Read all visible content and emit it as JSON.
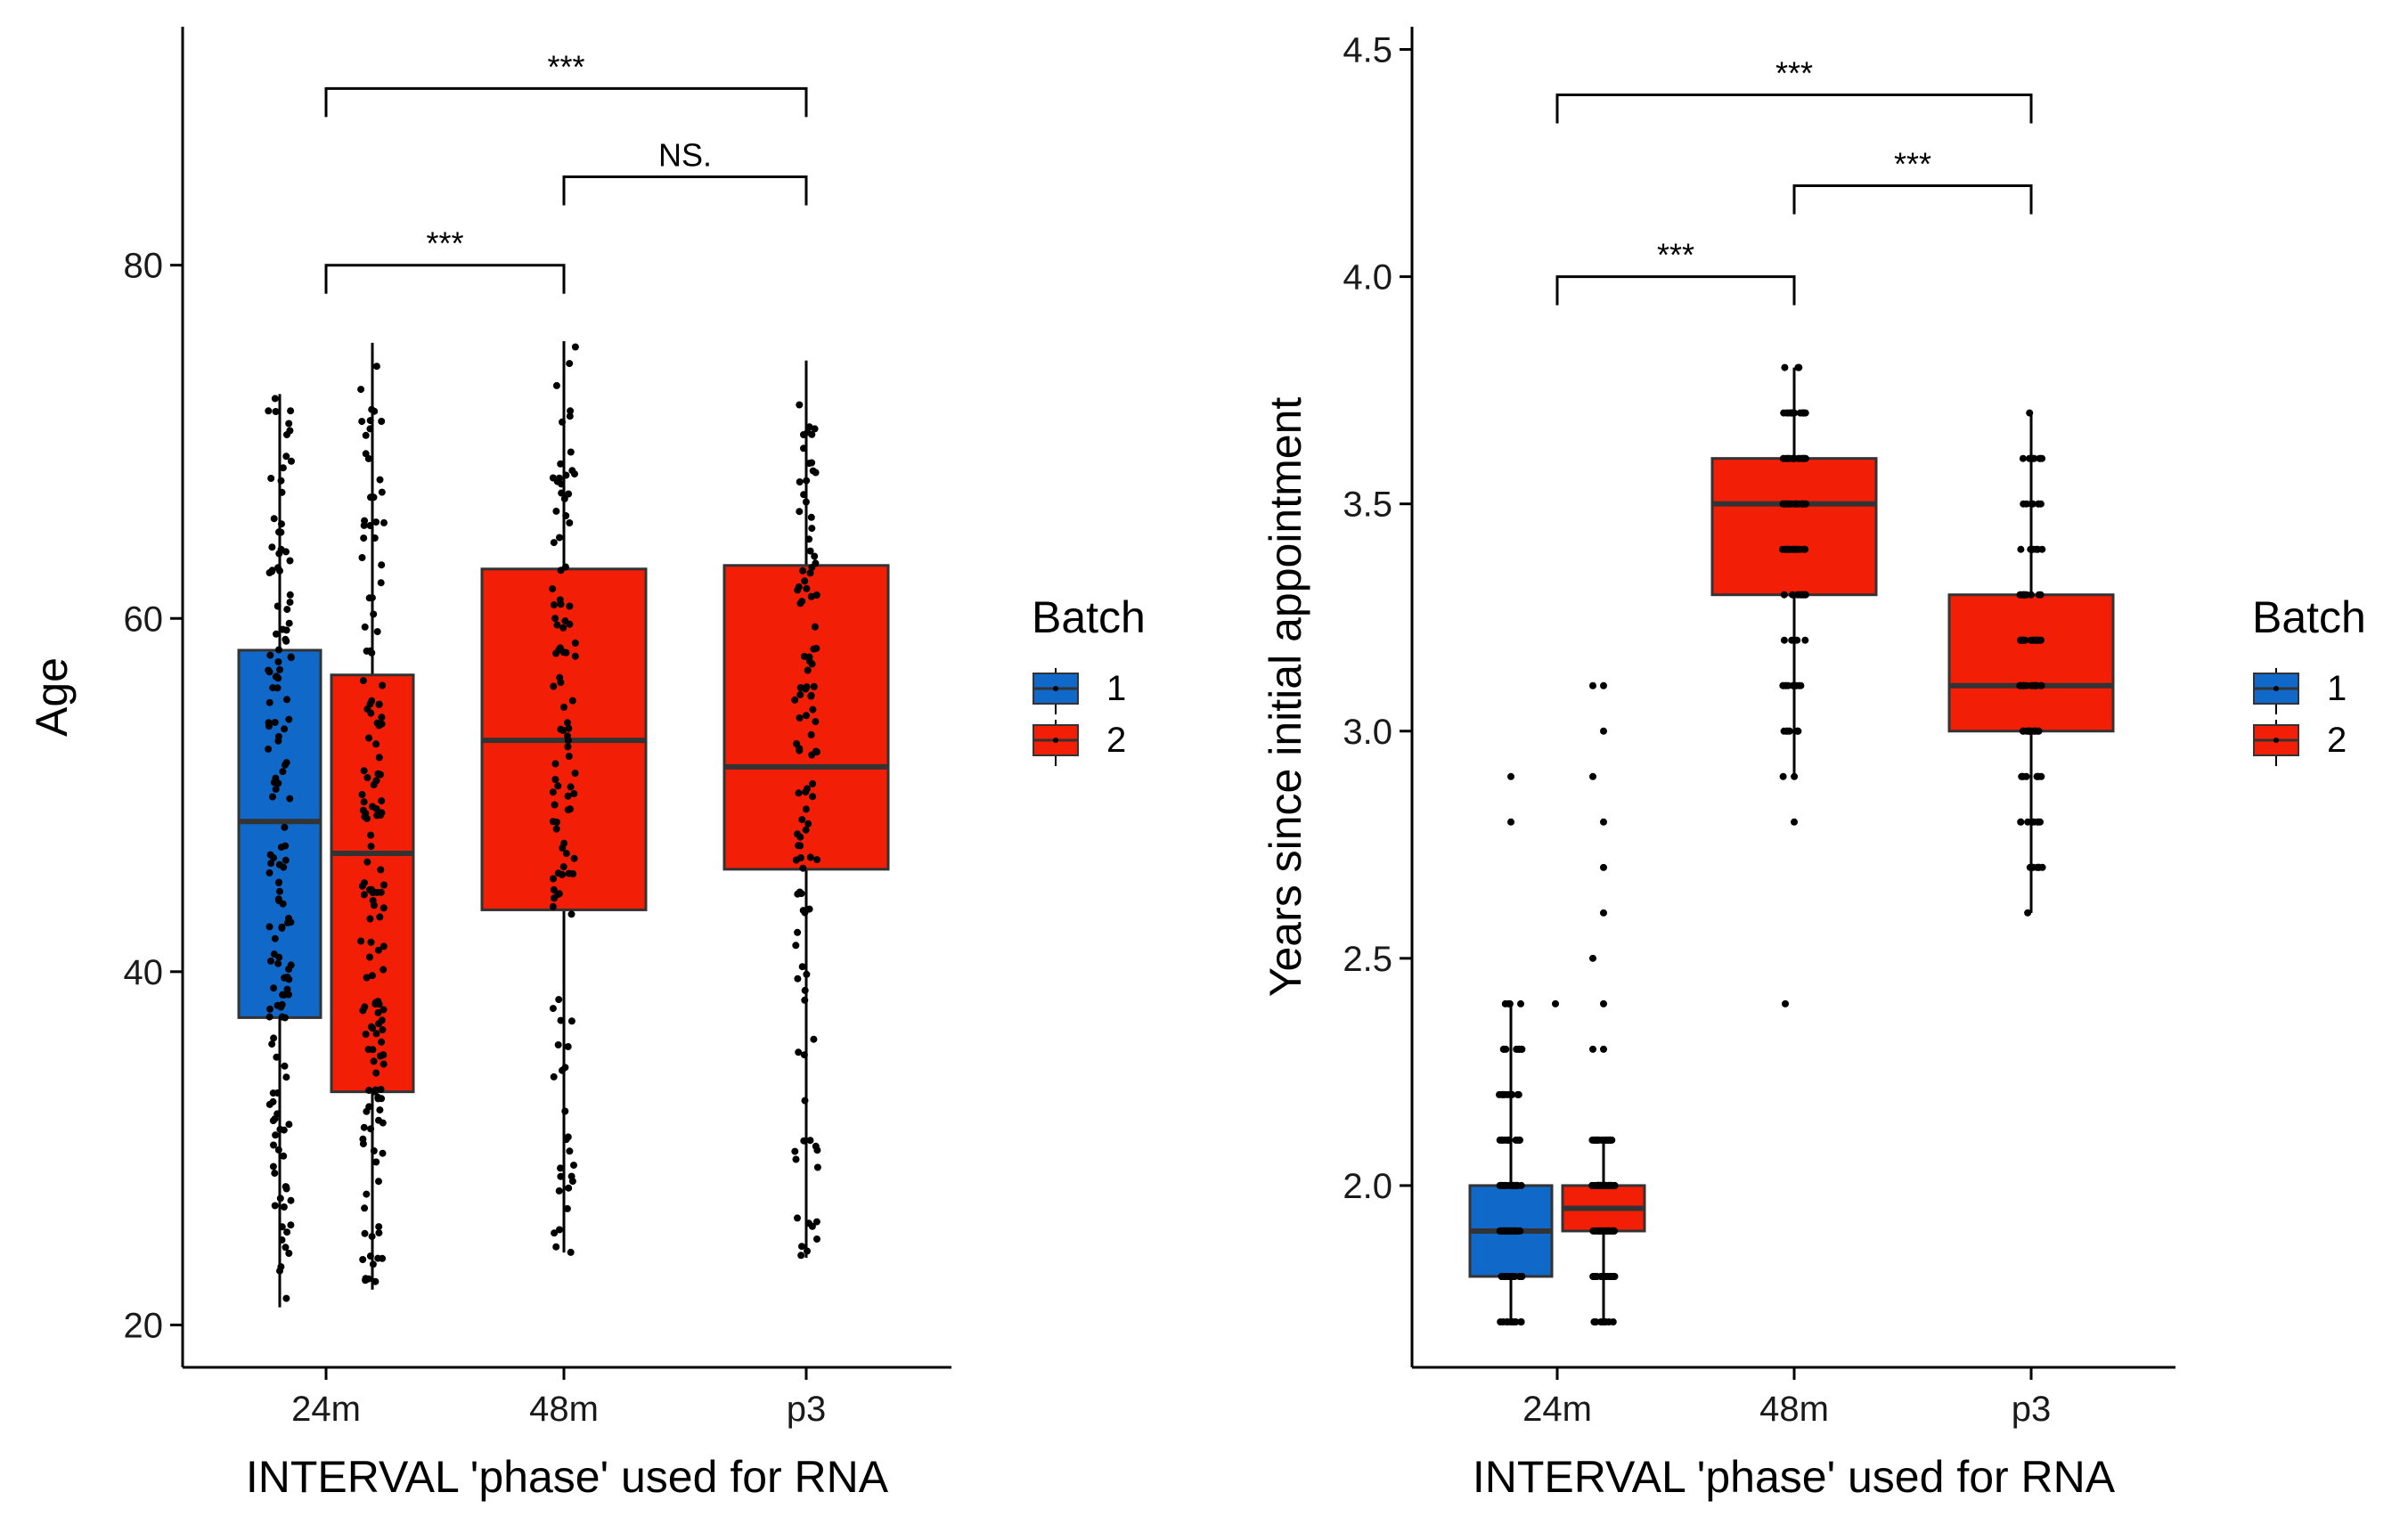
{
  "chart_data": [
    {
      "type": "boxplot",
      "ylabel": "Age",
      "xlabel": "INTERVAL 'phase' used for RNA",
      "categories": [
        "24m",
        "48m",
        "p3"
      ],
      "y_ticks": [
        20,
        40,
        60,
        80
      ],
      "ylim": [
        17.6,
        93.5
      ],
      "legend": {
        "title": "Batch",
        "entries": [
          {
            "label": "1",
            "color": "#1068C9"
          },
          {
            "label": "2",
            "color": "#F21E06"
          }
        ]
      },
      "boxes": [
        {
          "category": "24m",
          "batch": "1",
          "min": 21,
          "q1": 37.4,
          "median": 48.5,
          "q3": 58.2,
          "max": 72.7,
          "color": "#1068C9"
        },
        {
          "category": "24m",
          "batch": "2",
          "min": 22,
          "q1": 33.2,
          "median": 46.7,
          "q3": 56.8,
          "max": 75.6,
          "color": "#F21E06"
        },
        {
          "category": "48m",
          "batch": "2",
          "min": 24.1,
          "q1": 43.5,
          "median": 53.1,
          "q3": 62.8,
          "max": 75.7,
          "color": "#F21E06"
        },
        {
          "category": "p3",
          "batch": "2",
          "min": 23.8,
          "q1": 45.8,
          "median": 51.6,
          "q3": 63.0,
          "max": 74.6,
          "color": "#F21E06"
        }
      ],
      "comparisons": [
        {
          "from": "24m",
          "to": "48m",
          "label": "***",
          "y": 80
        },
        {
          "from": "48m",
          "to": "p3",
          "label": "NS.",
          "y": 85
        },
        {
          "from": "24m",
          "to": "p3",
          "label": "***",
          "y": 90
        }
      ]
    },
    {
      "type": "boxplot",
      "ylabel": "Years since initial appointment",
      "xlabel": "INTERVAL 'phase' used for RNA",
      "categories": [
        "24m",
        "48m",
        "p3"
      ],
      "y_ticks": [
        2.0,
        2.5,
        3.0,
        3.5,
        4.0,
        4.5
      ],
      "y_tick_labels": [
        "2.0",
        "2.5",
        "3.0",
        "3.5",
        "4.0",
        "4.5"
      ],
      "ylim": [
        1.6,
        4.55
      ],
      "legend": {
        "title": "Batch",
        "entries": [
          {
            "label": "1",
            "color": "#1068C9"
          },
          {
            "label": "2",
            "color": "#F21E06"
          }
        ]
      },
      "boxes": [
        {
          "category": "24m",
          "batch": "1",
          "min": 1.7,
          "q1": 1.8,
          "median": 1.9,
          "q3": 2.0,
          "max": 2.4,
          "color": "#1068C9"
        },
        {
          "category": "24m",
          "batch": "2",
          "min": 1.7,
          "q1": 1.9,
          "median": 1.95,
          "q3": 2.0,
          "max": 2.1,
          "color": "#F21E06"
        },
        {
          "category": "48m",
          "batch": "2",
          "min": 2.9,
          "q1": 3.3,
          "median": 3.5,
          "q3": 3.6,
          "max": 3.8,
          "color": "#F21E06"
        },
        {
          "category": "p3",
          "batch": "2",
          "min": 2.6,
          "q1": 3.0,
          "median": 3.1,
          "q3": 3.3,
          "max": 3.7,
          "color": "#F21E06"
        }
      ],
      "comparisons": [
        {
          "from": "24m",
          "to": "48m",
          "label": "***",
          "y": 4.0
        },
        {
          "from": "48m",
          "to": "p3",
          "label": "***",
          "y": 4.2
        },
        {
          "from": "24m",
          "to": "p3",
          "label": "***",
          "y": 4.4
        }
      ]
    }
  ]
}
